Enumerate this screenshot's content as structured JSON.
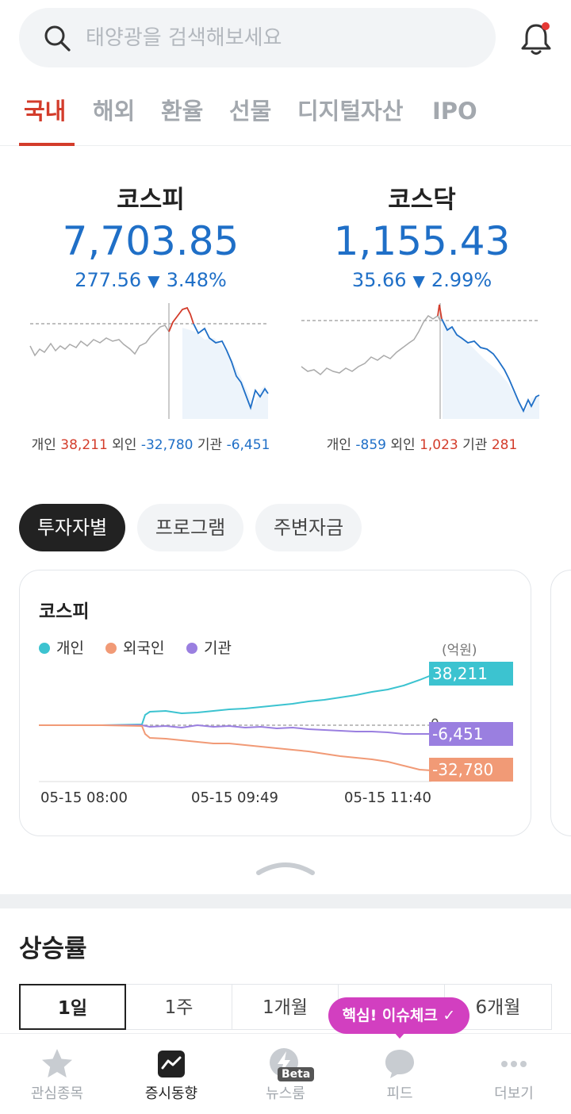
{
  "search": {
    "placeholder": "태양광을 검색해보세요",
    "icon": "search-icon"
  },
  "notification": {
    "icon": "bell-icon",
    "badge_color": "#e53935"
  },
  "tabs": [
    {
      "label": "국내",
      "active": true
    },
    {
      "label": "해외"
    },
    {
      "label": "환율"
    },
    {
      "label": "선물"
    },
    {
      "label": "디지털자산"
    },
    {
      "label": "IPO"
    }
  ],
  "indices": [
    {
      "name": "코스피",
      "value": "7,703.85",
      "change": "277.56",
      "direction_icon": "▼",
      "percent": "3.48%",
      "flows": {
        "individual_label": "개인",
        "individual": "38,211",
        "foreign_label": "외인",
        "foreign": "-32,780",
        "institution_label": "기관",
        "institution": "-6,451"
      }
    },
    {
      "name": "코스닥",
      "value": "1,155.43",
      "change": "35.66",
      "direction_icon": "▼",
      "percent": "2.99%",
      "flows": {
        "individual_label": "개인",
        "individual": "-859",
        "foreign_label": "외인",
        "foreign": "1,023",
        "institution_label": "기관",
        "institution": "281"
      }
    }
  ],
  "segments": [
    {
      "label": "투자자별",
      "active": true
    },
    {
      "label": "프로그램"
    },
    {
      "label": "주변자금"
    }
  ],
  "investor_card": {
    "title": "코스피",
    "unit": "(억원)",
    "zero_label": "0",
    "chart_data": {
      "type": "line",
      "x_ticks": [
        "05-15 08:00",
        "05-15 09:49",
        "05-15 11:40"
      ],
      "series": [
        {
          "name": "개인",
          "color": "#3cc3d0",
          "last": "38,211"
        },
        {
          "name": "외국인",
          "color": "#f19a76",
          "last": "-32,780"
        },
        {
          "name": "기관",
          "color": "#9a7fe0",
          "last": "-6,451"
        }
      ]
    }
  },
  "rise_section": {
    "title": "상승률",
    "periods": [
      {
        "label": "1일",
        "active": true
      },
      {
        "label": "1주"
      },
      {
        "label": "1개월"
      },
      {
        "label": ""
      },
      {
        "label": "6개월"
      }
    ]
  },
  "issue_bubble": {
    "label": "핵심! 이슈체크 ✓",
    "color": "#d23fc0"
  },
  "bottom_nav": [
    {
      "label": "관심종목",
      "icon": "star-icon"
    },
    {
      "label": "증시동향",
      "icon": "chart-icon",
      "active": true
    },
    {
      "label": "뉴스룸",
      "icon": "lightning-icon",
      "badge": "Beta"
    },
    {
      "label": "피드",
      "icon": "chat-bubble-icon"
    },
    {
      "label": "더보기",
      "icon": "more-dots-icon"
    }
  ]
}
